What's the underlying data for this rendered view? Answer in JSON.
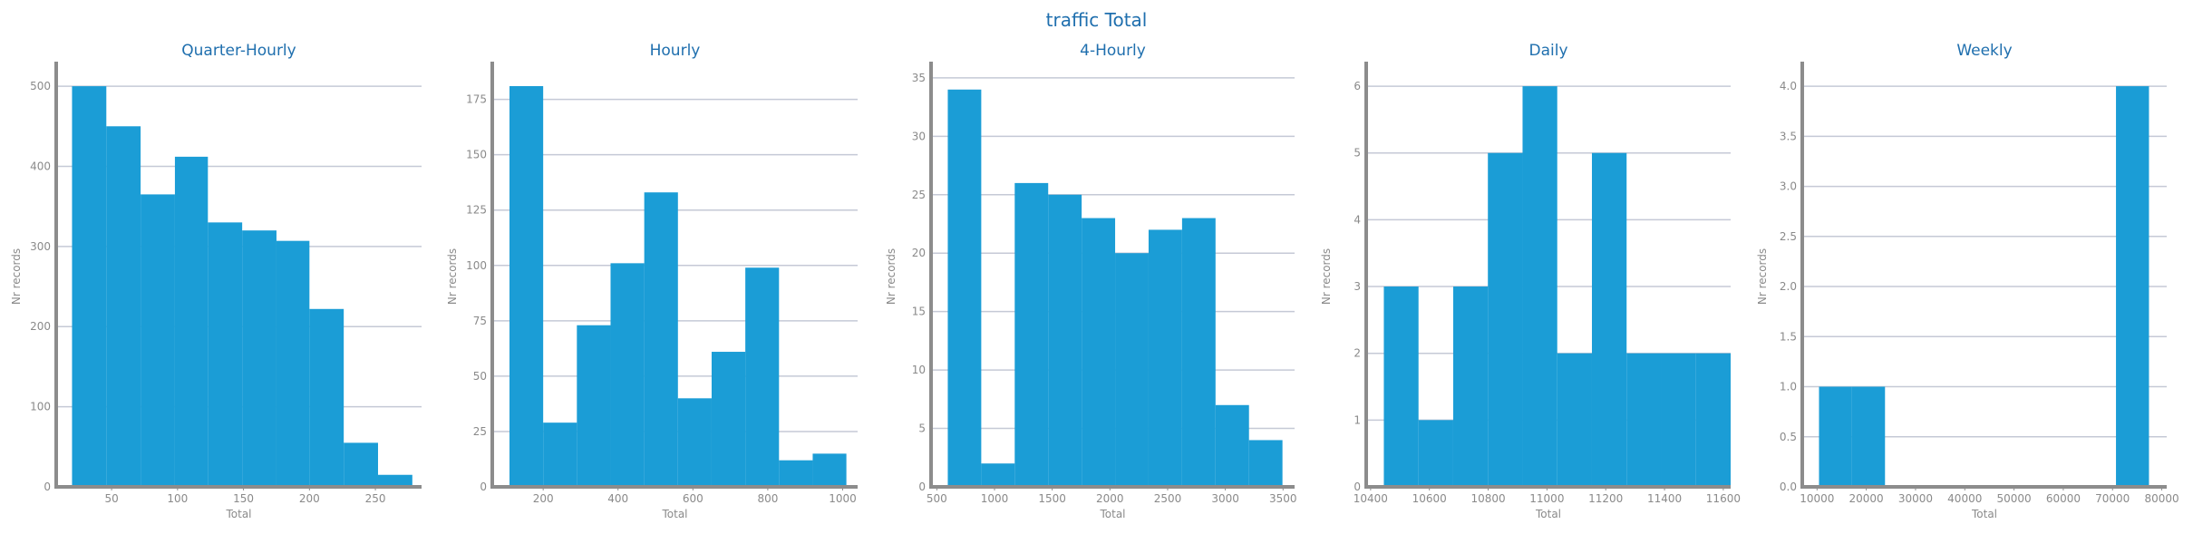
{
  "title": "traffic Total",
  "colors": {
    "bar": "#1b9dd6",
    "grid": "#c5c9d6",
    "axis": "#8c8c8c",
    "title": "#1f6fae",
    "text": "#8a8a8a"
  },
  "chart_data": [
    {
      "type": "bar",
      "title": "Quarter-Hourly",
      "xlabel": "Total",
      "ylabel": "Nr records",
      "xlim": [
        8,
        285
      ],
      "ylim": [
        0,
        525
      ],
      "xticks": [
        50,
        100,
        150,
        200,
        250
      ],
      "yticks": [
        0,
        100,
        200,
        300,
        400,
        500
      ],
      "bins": [
        {
          "x0": 20,
          "x1": 46,
          "value": 500
        },
        {
          "x0": 46,
          "x1": 72,
          "value": 450
        },
        {
          "x0": 72,
          "x1": 98,
          "value": 365
        },
        {
          "x0": 98,
          "x1": 123,
          "value": 412
        },
        {
          "x0": 123,
          "x1": 149,
          "value": 330
        },
        {
          "x0": 149,
          "x1": 175,
          "value": 320
        },
        {
          "x0": 175,
          "x1": 200,
          "value": 307
        },
        {
          "x0": 200,
          "x1": 226,
          "value": 222
        },
        {
          "x0": 226,
          "x1": 252,
          "value": 55
        },
        {
          "x0": 252,
          "x1": 278,
          "value": 15
        }
      ],
      "grid": true
    },
    {
      "type": "bar",
      "title": "Hourly",
      "xlabel": "Total",
      "ylabel": "Nr records",
      "xlim": [
        64,
        1040
      ],
      "ylim": [
        0,
        190
      ],
      "xticks": [
        200,
        400,
        600,
        800,
        1000
      ],
      "yticks": [
        0,
        25,
        50,
        75,
        100,
        125,
        150,
        175
      ],
      "bins": [
        {
          "x0": 110,
          "x1": 200,
          "value": 181
        },
        {
          "x0": 200,
          "x1": 290,
          "value": 29
        },
        {
          "x0": 290,
          "x1": 380,
          "value": 73
        },
        {
          "x0": 380,
          "x1": 470,
          "value": 101
        },
        {
          "x0": 470,
          "x1": 560,
          "value": 133
        },
        {
          "x0": 560,
          "x1": 650,
          "value": 40
        },
        {
          "x0": 650,
          "x1": 740,
          "value": 61
        },
        {
          "x0": 740,
          "x1": 830,
          "value": 99
        },
        {
          "x0": 830,
          "x1": 920,
          "value": 12
        },
        {
          "x0": 920,
          "x1": 1010,
          "value": 15
        }
      ],
      "grid": true
    },
    {
      "type": "bar",
      "title": "4-Hourly",
      "xlabel": "Total",
      "ylabel": "Nr records",
      "xlim": [
        450,
        3600
      ],
      "ylim": [
        0,
        36
      ],
      "xticks": [
        500,
        1000,
        1500,
        2000,
        2500,
        3000,
        3500
      ],
      "yticks": [
        0,
        5,
        10,
        15,
        20,
        25,
        30,
        35
      ],
      "bins": [
        {
          "x0": 595,
          "x1": 885,
          "value": 34
        },
        {
          "x0": 885,
          "x1": 1175,
          "value": 2
        },
        {
          "x0": 1175,
          "x1": 1465,
          "value": 26
        },
        {
          "x0": 1465,
          "x1": 1755,
          "value": 25
        },
        {
          "x0": 1755,
          "x1": 2045,
          "value": 23
        },
        {
          "x0": 2045,
          "x1": 2335,
          "value": 20
        },
        {
          "x0": 2335,
          "x1": 2625,
          "value": 22
        },
        {
          "x0": 2625,
          "x1": 2915,
          "value": 23
        },
        {
          "x0": 2915,
          "x1": 3205,
          "value": 7
        },
        {
          "x0": 3205,
          "x1": 3495,
          "value": 4
        }
      ],
      "grid": true
    },
    {
      "type": "bar",
      "title": "Daily",
      "xlabel": "Total",
      "ylabel": "Nr records",
      "xlim": [
        10385,
        11625
      ],
      "ylim": [
        0,
        6.3
      ],
      "xticks": [
        10400,
        10600,
        10800,
        11000,
        11200,
        11400,
        11600
      ],
      "yticks": [
        0,
        1,
        2,
        3,
        4,
        5,
        6
      ],
      "bins": [
        {
          "x0": 10445,
          "x1": 10563,
          "value": 3
        },
        {
          "x0": 10563,
          "x1": 10681,
          "value": 1
        },
        {
          "x0": 10681,
          "x1": 10799,
          "value": 3
        },
        {
          "x0": 10799,
          "x1": 10917,
          "value": 5
        },
        {
          "x0": 10917,
          "x1": 11035,
          "value": 6
        },
        {
          "x0": 11035,
          "x1": 11153,
          "value": 2
        },
        {
          "x0": 11153,
          "x1": 11271,
          "value": 5
        },
        {
          "x0": 11271,
          "x1": 11389,
          "value": 2
        },
        {
          "x0": 11389,
          "x1": 11507,
          "value": 2
        },
        {
          "x0": 11507,
          "x1": 11625,
          "value": 2
        }
      ],
      "grid": true
    },
    {
      "type": "bar",
      "title": "Weekly",
      "xlabel": "Total",
      "ylabel": "Nr records",
      "xlim": [
        7000,
        81000
      ],
      "ylim": [
        0,
        4.2
      ],
      "xticks": [
        10000,
        20000,
        30000,
        40000,
        50000,
        60000,
        70000,
        80000
      ],
      "yticks": [
        0.0,
        0.5,
        1.0,
        1.5,
        2.0,
        2.5,
        3.0,
        3.5,
        4.0
      ],
      "yticklabels": [
        "0.0",
        "0.5",
        "1.0",
        "1.5",
        "2.0",
        "2.5",
        "3.0",
        "3.5",
        "4.0"
      ],
      "bins": [
        {
          "x0": 10400,
          "x1": 17100,
          "value": 1
        },
        {
          "x0": 17100,
          "x1": 23800,
          "value": 1
        },
        {
          "x0": 23800,
          "x1": 30500,
          "value": 0
        },
        {
          "x0": 30500,
          "x1": 37200,
          "value": 0
        },
        {
          "x0": 37200,
          "x1": 43900,
          "value": 0
        },
        {
          "x0": 43900,
          "x1": 50600,
          "value": 0
        },
        {
          "x0": 50600,
          "x1": 57300,
          "value": 0
        },
        {
          "x0": 57300,
          "x1": 64000,
          "value": 0
        },
        {
          "x0": 64000,
          "x1": 70700,
          "value": 0
        },
        {
          "x0": 70700,
          "x1": 77400,
          "value": 4
        }
      ],
      "grid": true
    }
  ]
}
